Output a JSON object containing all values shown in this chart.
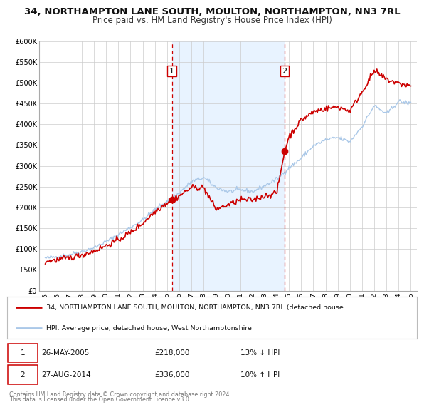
{
  "title": "34, NORTHAMPTON LANE SOUTH, MOULTON, NORTHAMPTON, NN3 7RL",
  "subtitle": "Price paid vs. HM Land Registry's House Price Index (HPI)",
  "ylim": [
    0,
    600000
  ],
  "yticks": [
    0,
    50000,
    100000,
    150000,
    200000,
    250000,
    300000,
    350000,
    400000,
    450000,
    500000,
    550000,
    600000
  ],
  "ytick_labels": [
    "£0",
    "£50K",
    "£100K",
    "£150K",
    "£200K",
    "£250K",
    "£300K",
    "£350K",
    "£400K",
    "£450K",
    "£500K",
    "£550K",
    "£600K"
  ],
  "xlim_start": 1994.5,
  "xlim_end": 2025.5,
  "xticks": [
    1995,
    1996,
    1997,
    1998,
    1999,
    2000,
    2001,
    2002,
    2003,
    2004,
    2005,
    2006,
    2007,
    2008,
    2009,
    2010,
    2011,
    2012,
    2013,
    2014,
    2015,
    2016,
    2017,
    2018,
    2019,
    2020,
    2021,
    2022,
    2023,
    2024,
    2025
  ],
  "sale1_x": 2005.39,
  "sale1_y": 218000,
  "sale1_label": "1",
  "sale1_date": "26-MAY-2005",
  "sale1_price": "£218,000",
  "sale1_hpi": "13% ↓ HPI",
  "sale2_x": 2014.65,
  "sale2_y": 336000,
  "sale2_label": "2",
  "sale2_date": "27-AUG-2014",
  "sale2_price": "£336,000",
  "sale2_hpi": "10% ↑ HPI",
  "property_color": "#cc0000",
  "hpi_color": "#aac8e8",
  "vline_color": "#cc0000",
  "shade_color": "#ddeeff",
  "legend_line1": "34, NORTHAMPTON LANE SOUTH, MOULTON, NORTHAMPTON, NN3 7RL (detached house",
  "legend_line2": "HPI: Average price, detached house, West Northamptonshire",
  "footer1": "Contains HM Land Registry data © Crown copyright and database right 2024.",
  "footer2": "This data is licensed under the Open Government Licence v3.0.",
  "background_color": "#ffffff",
  "grid_color": "#cccccc",
  "title_fontsize": 9.5,
  "subtitle_fontsize": 8.5
}
